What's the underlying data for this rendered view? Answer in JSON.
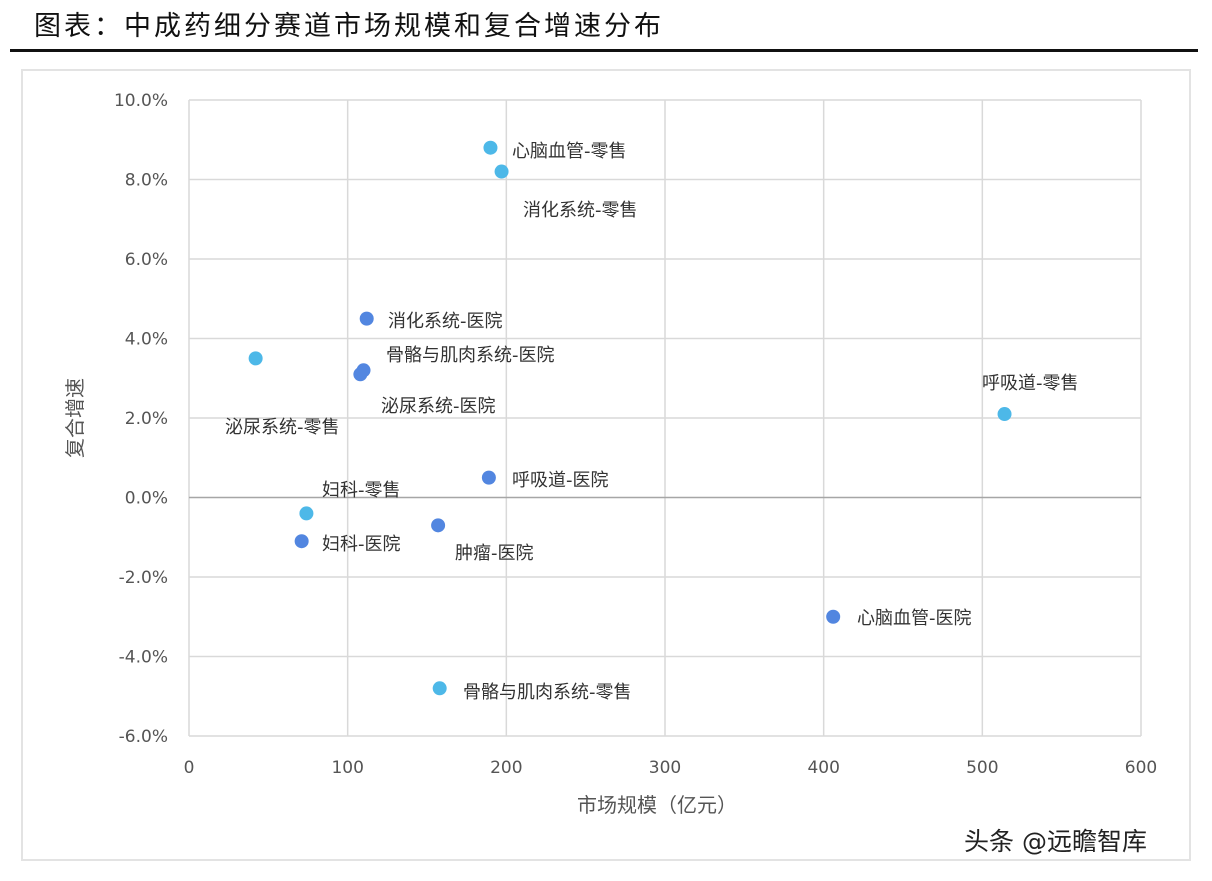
{
  "title": "图表：中成药细分赛道市场规模和复合增速分布",
  "watermark": "头条 @远瞻智库",
  "colors": {
    "retail": "#4DB8E8",
    "hospital": "#5286E0",
    "grid": "#d9d9d9",
    "zero": "#a6a6a6"
  },
  "chart_data": {
    "type": "scatter",
    "title": "图表：中成药细分赛道市场规模和复合增速分布",
    "xlabel": "市场规模（亿元）",
    "ylabel": "复合增速",
    "xlim": [
      0,
      600
    ],
    "ylim": [
      -6,
      10
    ],
    "xticks": [
      0,
      100,
      200,
      300,
      400,
      500,
      600
    ],
    "xtick_labels": [
      "0",
      "100",
      "200",
      "300",
      "400",
      "500",
      "600"
    ],
    "yticks": [
      10,
      8,
      6,
      4,
      2,
      0,
      -2,
      -4,
      -6
    ],
    "ytick_labels": [
      "10.0%",
      "8.0%",
      "6.0%",
      "4.0%",
      "2.0%",
      "0.0%",
      "-2.0%",
      "-4.0%",
      "-6.0%"
    ],
    "grid": true,
    "series": [
      {
        "name": "零售",
        "points": [
          {
            "label": "心脑血管-零售",
            "x": 190,
            "y": 8.8
          },
          {
            "label": "消化系统-零售",
            "x": 197,
            "y": 8.2
          },
          {
            "label": "泌尿系统-零售",
            "x": 42,
            "y": 3.5
          },
          {
            "label": "呼吸道-零售",
            "x": 514,
            "y": 2.1
          },
          {
            "label": "妇科-零售",
            "x": 74,
            "y": -0.4
          },
          {
            "label": "骨骼与肌肉系统-零售",
            "x": 158,
            "y": -4.8
          }
        ]
      },
      {
        "name": "医院",
        "points": [
          {
            "label": "消化系统-医院",
            "x": 112,
            "y": 4.5
          },
          {
            "label": "骨骼与肌肉系统-医院",
            "x": 110,
            "y": 3.2
          },
          {
            "label": "泌尿系统-医院",
            "x": 108,
            "y": 3.1
          },
          {
            "label": "呼吸道-医院",
            "x": 189,
            "y": 0.5
          },
          {
            "label": "妇科-医院",
            "x": 71,
            "y": -1.1
          },
          {
            "label": "肿瘤-医院",
            "x": 157,
            "y": -0.7
          },
          {
            "label": "心脑血管-医院",
            "x": 406,
            "y": -3.0
          }
        ]
      }
    ]
  }
}
